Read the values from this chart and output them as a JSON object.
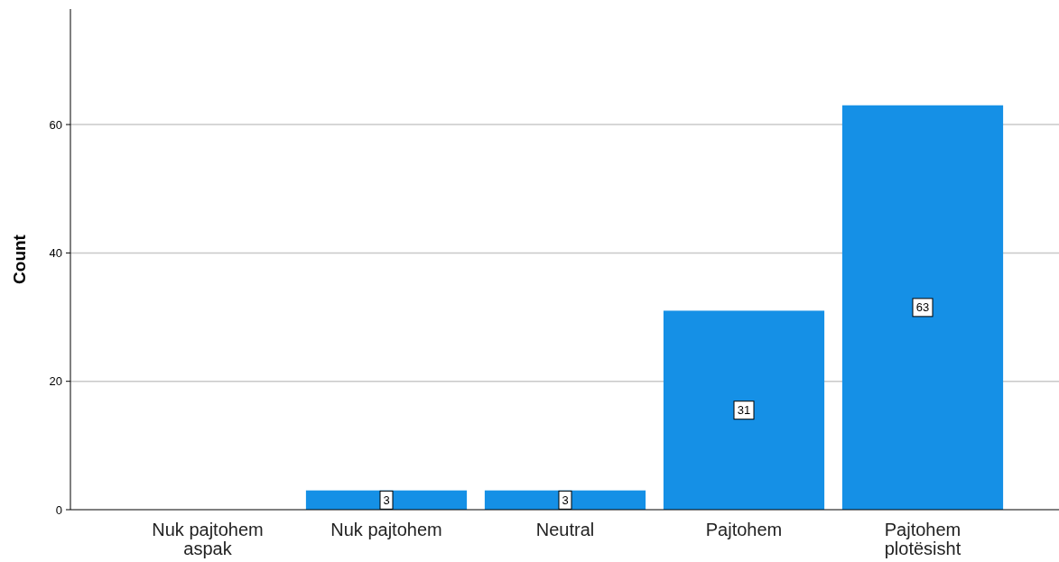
{
  "chart_data": {
    "type": "bar",
    "ylabel": "Count",
    "categories": [
      "Nuk pajtohem aspak",
      "Nuk pajtohem",
      "Neutral",
      "Pajtohem",
      "Pajtohem plotësisht"
    ],
    "values": [
      0,
      3,
      3,
      31,
      63
    ],
    "value_labels": [
      null,
      "3",
      "3",
      "31",
      "63"
    ],
    "color": "#1590e6",
    "ylim": [
      0,
      78
    ],
    "yticks": [
      0,
      20,
      40,
      60
    ],
    "grid": "y"
  }
}
